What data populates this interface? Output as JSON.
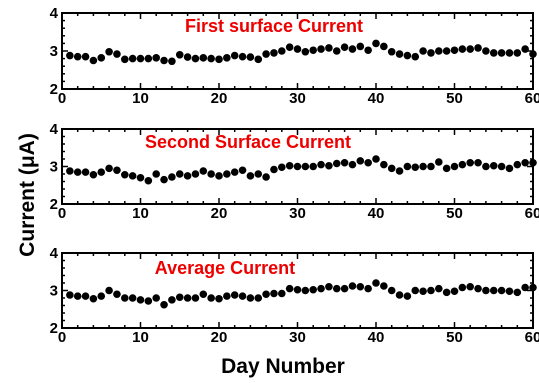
{
  "figure": {
    "ylabel": "Current (μA)",
    "xlabel": "Day Number"
  },
  "chart_data": [
    {
      "type": "scatter",
      "title": "First surface Current",
      "title_color": "#ee0000",
      "xlim": [
        0,
        60
      ],
      "ylim": [
        2,
        4
      ],
      "xticks": [
        0,
        10,
        20,
        30,
        40,
        50,
        60
      ],
      "yticks": [
        2,
        3,
        4
      ],
      "series": [
        {
          "x": [
            1,
            2,
            3,
            4,
            5,
            6,
            7,
            8,
            9,
            10,
            11,
            12,
            13,
            14,
            15,
            16,
            17,
            18,
            19,
            20,
            21,
            22,
            23,
            24,
            25,
            26,
            27,
            28,
            29,
            30,
            31,
            32,
            33,
            34,
            35,
            36,
            37,
            38,
            39,
            40,
            41,
            42,
            43,
            44,
            45,
            46,
            47,
            48,
            49,
            50,
            51,
            52,
            53,
            54,
            55,
            56,
            57,
            58,
            59,
            60
          ],
          "y": [
            2.88,
            2.85,
            2.85,
            2.75,
            2.82,
            2.98,
            2.92,
            2.78,
            2.8,
            2.8,
            2.8,
            2.82,
            2.75,
            2.73,
            2.9,
            2.84,
            2.8,
            2.82,
            2.8,
            2.78,
            2.82,
            2.88,
            2.85,
            2.84,
            2.78,
            2.92,
            2.95,
            3.0,
            3.1,
            3.05,
            2.98,
            3.02,
            3.05,
            3.08,
            3.0,
            3.1,
            3.05,
            3.12,
            3.02,
            3.2,
            3.12,
            2.98,
            2.92,
            2.88,
            2.85,
            3.0,
            2.95,
            3.0,
            3.0,
            3.02,
            3.05,
            3.05,
            3.08,
            3.0,
            2.95,
            2.95,
            2.95,
            2.95,
            3.05,
            2.92
          ]
        }
      ]
    },
    {
      "type": "scatter",
      "title": "Second Surface Current",
      "title_color": "#ee0000",
      "xlim": [
        0,
        60
      ],
      "ylim": [
        2,
        4
      ],
      "xticks": [
        0,
        10,
        20,
        30,
        40,
        50,
        60
      ],
      "yticks": [
        2,
        3,
        4
      ],
      "series": [
        {
          "x": [
            1,
            2,
            3,
            4,
            5,
            6,
            7,
            8,
            9,
            10,
            11,
            12,
            13,
            14,
            15,
            16,
            17,
            18,
            19,
            20,
            21,
            22,
            23,
            24,
            25,
            26,
            27,
            28,
            29,
            30,
            31,
            32,
            33,
            34,
            35,
            36,
            37,
            38,
            39,
            40,
            41,
            42,
            43,
            44,
            45,
            46,
            47,
            48,
            49,
            50,
            51,
            52,
            53,
            54,
            55,
            56,
            57,
            58,
            59,
            60
          ],
          "y": [
            2.88,
            2.85,
            2.85,
            2.78,
            2.85,
            2.95,
            2.9,
            2.78,
            2.75,
            2.7,
            2.62,
            2.8,
            2.65,
            2.72,
            2.8,
            2.75,
            2.8,
            2.88,
            2.8,
            2.75,
            2.8,
            2.85,
            2.9,
            2.75,
            2.8,
            2.72,
            2.92,
            2.98,
            3.02,
            3.0,
            3.0,
            3.0,
            3.05,
            3.02,
            3.08,
            3.1,
            3.05,
            3.15,
            3.1,
            3.2,
            3.05,
            2.95,
            2.88,
            3.0,
            2.98,
            3.0,
            3.0,
            3.12,
            2.95,
            3.0,
            3.05,
            3.1,
            3.1,
            3.0,
            3.02,
            3.0,
            2.95,
            3.05,
            3.1,
            3.1
          ]
        }
      ]
    },
    {
      "type": "scatter",
      "title": "Average Current",
      "title_color": "#ee0000",
      "xlim": [
        0,
        60
      ],
      "ylim": [
        2,
        4
      ],
      "xticks": [
        0,
        10,
        20,
        30,
        40,
        50,
        60
      ],
      "yticks": [
        2,
        3,
        4
      ],
      "series": [
        {
          "x": [
            1,
            2,
            3,
            4,
            5,
            6,
            7,
            8,
            9,
            10,
            11,
            12,
            13,
            14,
            15,
            16,
            17,
            18,
            19,
            20,
            21,
            22,
            23,
            24,
            25,
            26,
            27,
            28,
            29,
            30,
            31,
            32,
            33,
            34,
            35,
            36,
            37,
            38,
            39,
            40,
            41,
            42,
            43,
            44,
            45,
            46,
            47,
            48,
            49,
            50,
            51,
            52,
            53,
            54,
            55,
            56,
            57,
            58,
            59,
            60
          ],
          "y": [
            2.88,
            2.85,
            2.85,
            2.78,
            2.85,
            3.0,
            2.9,
            2.8,
            2.8,
            2.75,
            2.72,
            2.8,
            2.62,
            2.75,
            2.82,
            2.8,
            2.8,
            2.9,
            2.8,
            2.78,
            2.85,
            2.88,
            2.85,
            2.8,
            2.8,
            2.9,
            2.92,
            2.92,
            3.05,
            3.02,
            3.0,
            3.02,
            3.05,
            3.1,
            3.05,
            3.05,
            3.12,
            3.1,
            3.05,
            3.2,
            3.12,
            3.0,
            2.88,
            2.85,
            3.0,
            2.98,
            3.0,
            3.05,
            2.95,
            2.98,
            3.08,
            3.1,
            3.05,
            3.0,
            3.0,
            3.0,
            2.98,
            2.95,
            3.08,
            3.08
          ]
        }
      ]
    }
  ]
}
